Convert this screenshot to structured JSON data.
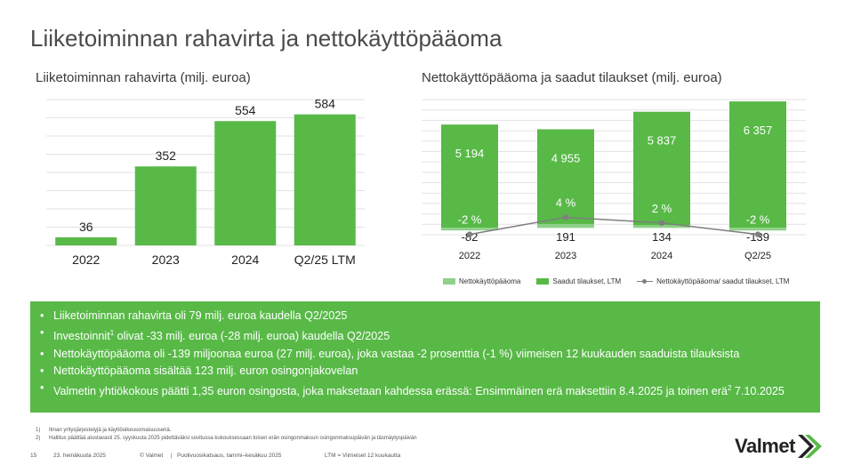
{
  "slide": {
    "title": "Liiketoiminnan rahavirta ja nettokäyttöpääoma",
    "page_number": "15",
    "date": "23. heinäkuuta 2025",
    "copyright": "© Valmet",
    "presentation": "Puolivuosikatsaus, tammi–kesäkuu 2025",
    "separator": "|",
    "ltm_note": "LTM = Viimeiset 12 kuukautta",
    "logo_text": "Valmet"
  },
  "colors": {
    "green": "#58b947",
    "light_green": "#8fd08a",
    "line_gray": "#7f7f7f"
  },
  "chart_data": [
    {
      "type": "bar",
      "title": "Liiketoiminnan rahavirta (milj. euroa)",
      "categories": [
        "2022",
        "2023",
        "2024",
        "Q2/25 LTM"
      ],
      "values": [
        36,
        352,
        554,
        584
      ],
      "value_labels": [
        "36",
        "352",
        "554",
        "584"
      ],
      "ylim": [
        0,
        650
      ],
      "grid": true,
      "color": "#58b947"
    },
    {
      "type": "bar",
      "title": "Nettokäyttöpääoma ja saadut tilaukset (milj. euroa)",
      "categories": [
        "2022",
        "2023",
        "2024",
        "Q2/25"
      ],
      "ylim": [
        -350,
        6450
      ],
      "grid": true,
      "legend_position": "bottom",
      "series": [
        {
          "name": "Nettokäyttöpääoma",
          "values": [
            -82,
            191,
            134,
            -139
          ],
          "labels": [
            "-82",
            "191",
            "134",
            "-139"
          ],
          "color": "#8fd08a"
        },
        {
          "name": "Saadut tilaukset, LTM",
          "values": [
            5194,
            4955,
            5837,
            6357
          ],
          "labels": [
            "5 194",
            "4 955",
            "5 837",
            "6 357"
          ],
          "color": "#58b947"
        },
        {
          "name": "Nettokäyttöpääoma/ saadut tilaukset, LTM",
          "values": [
            -2,
            4,
            2,
            -2
          ],
          "labels": [
            "-2 %",
            "4 %",
            "2 %",
            "-2 %"
          ],
          "color": "#7f7f7f"
        }
      ]
    }
  ],
  "bullets": [
    {
      "text": "Liiketoiminnan rahavirta oli 79 milj. euroa kaudella Q2/2025"
    },
    {
      "text_before": "Investoinnit",
      "sup": "1",
      "text_after": " olivat  -33 milj. euroa (-28 milj. euroa) kaudella Q2/2025"
    },
    {
      "text": "Nettokäyttöpääoma oli -139 miljoonaa euroa (27 milj. euroa), joka vastaa -2 prosenttia (-1 %) viimeisen 12 kuukauden saaduista tilauksista"
    },
    {
      "text": "Nettokäyttöpääoma sisältää 123 milj. euron osingonjakovelan"
    },
    {
      "text_before": "Valmetin yhtiökokous päätti 1,35 euron osingosta, joka maksetaan kahdessa erässä: Ensimmäinen erä maksettiin 8.4.2025 ja toinen erä",
      "sup": "2",
      "text_after": " 7.10.2025"
    }
  ],
  "footnotes": [
    {
      "num": "1)",
      "text": "Ilman yritysjärjestelyjä ja käyttöoikeusomaisuuseriä."
    },
    {
      "num": "2)",
      "text": "Hallitus päättää alustavasti 25. syyskuuta 2025 pidettäväksi sovitussa kokouksessaan toisen erän osingonmaksun osingonmaksupäivän ja täsmäytyspäivän"
    }
  ]
}
